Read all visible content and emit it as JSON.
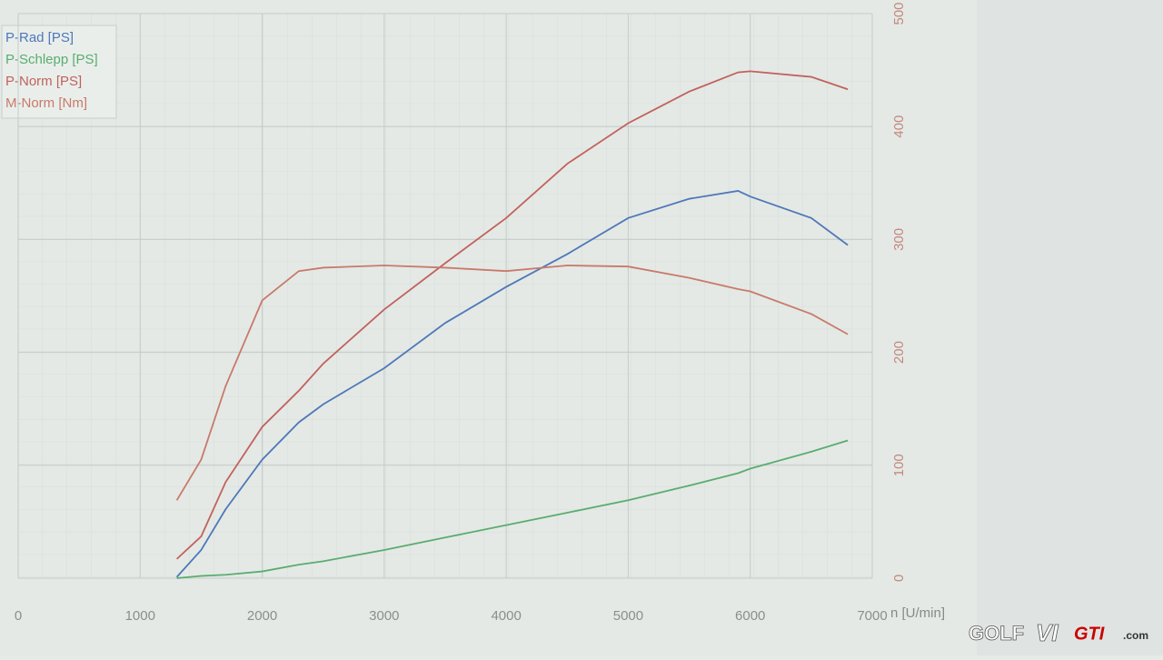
{
  "chart_data": {
    "type": "line",
    "x_label": "n [U/min]",
    "x": [
      1300,
      1500,
      1700,
      2000,
      2300,
      2500,
      3000,
      3500,
      4000,
      4500,
      5000,
      5500,
      5900,
      6000,
      6500,
      6800
    ],
    "series": [
      {
        "name": "P-Rad [PS]",
        "color": "#4f78b8",
        "values": [
          1,
          25,
          61,
          105,
          138,
          154,
          186,
          226,
          258,
          287,
          319,
          336,
          343,
          338,
          319,
          295
        ]
      },
      {
        "name": "P-Schlepp [PS]",
        "color": "#5aad6e",
        "values": [
          0,
          2,
          3,
          6,
          12,
          15,
          25,
          36,
          47,
          58,
          69,
          82,
          93,
          97,
          112,
          122
        ]
      },
      {
        "name": "P-Norm [PS]",
        "color": "#c2625c",
        "values": [
          17,
          37,
          85,
          134,
          166,
          190,
          238,
          279,
          319,
          367,
          403,
          431,
          448,
          449,
          444,
          433
        ]
      },
      {
        "name": "M-Norm [Nm]",
        "color": "#c97a6a",
        "values": [
          69,
          105,
          170,
          246,
          272,
          275,
          277,
          275,
          272,
          277,
          276,
          266,
          256,
          254,
          234,
          216
        ]
      }
    ],
    "xlim": [
      0,
      7000
    ],
    "xticks": [
      0,
      1000,
      2000,
      3000,
      4000,
      5000,
      6000,
      7000
    ],
    "ylim": [
      0,
      500
    ],
    "yticks": [
      0,
      100,
      200,
      300,
      400,
      500
    ],
    "grid": true,
    "legend": "top-left"
  },
  "watermark": {
    "part1": "GOLF",
    "part2": "VI",
    "part3": "GTI",
    "part4": ".com"
  }
}
